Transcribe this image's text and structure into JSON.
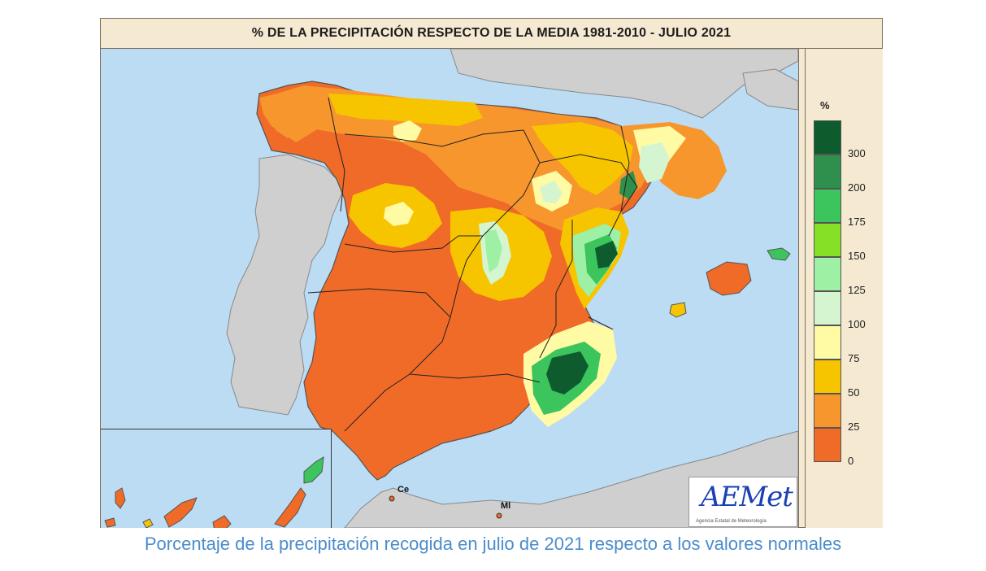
{
  "map": {
    "title": "% DE LA PRECIPITACIÓN RESPECTO DE LA MEDIA 1981-2010 - JULIO 2021",
    "labels": {
      "ceuta": "Ce",
      "melilla": "Ml"
    }
  },
  "legend": {
    "unit": "%",
    "items": [
      {
        "label": "300",
        "color": "#0e5b2d"
      },
      {
        "label": "200",
        "color": "#2f8f4d"
      },
      {
        "label": "175",
        "color": "#3cc45d"
      },
      {
        "label": "150",
        "color": "#86e025"
      },
      {
        "label": "125",
        "color": "#9ef0a4"
      },
      {
        "label": "100",
        "color": "#d4f5d0"
      },
      {
        "label": "75",
        "color": "#fffaa4"
      },
      {
        "label": "50",
        "color": "#f7c400"
      },
      {
        "label": "25",
        "color": "#f6962d"
      },
      {
        "label": "0",
        "color": "#f06a28"
      }
    ]
  },
  "logo": {
    "text": "AEMet",
    "subtext": "Agencia Estatal de Meteorología",
    "icon": "aemet-logo"
  },
  "caption": "Porcentaje de la precipitación recogida en julio de 2021 respecto a los valores normales"
}
